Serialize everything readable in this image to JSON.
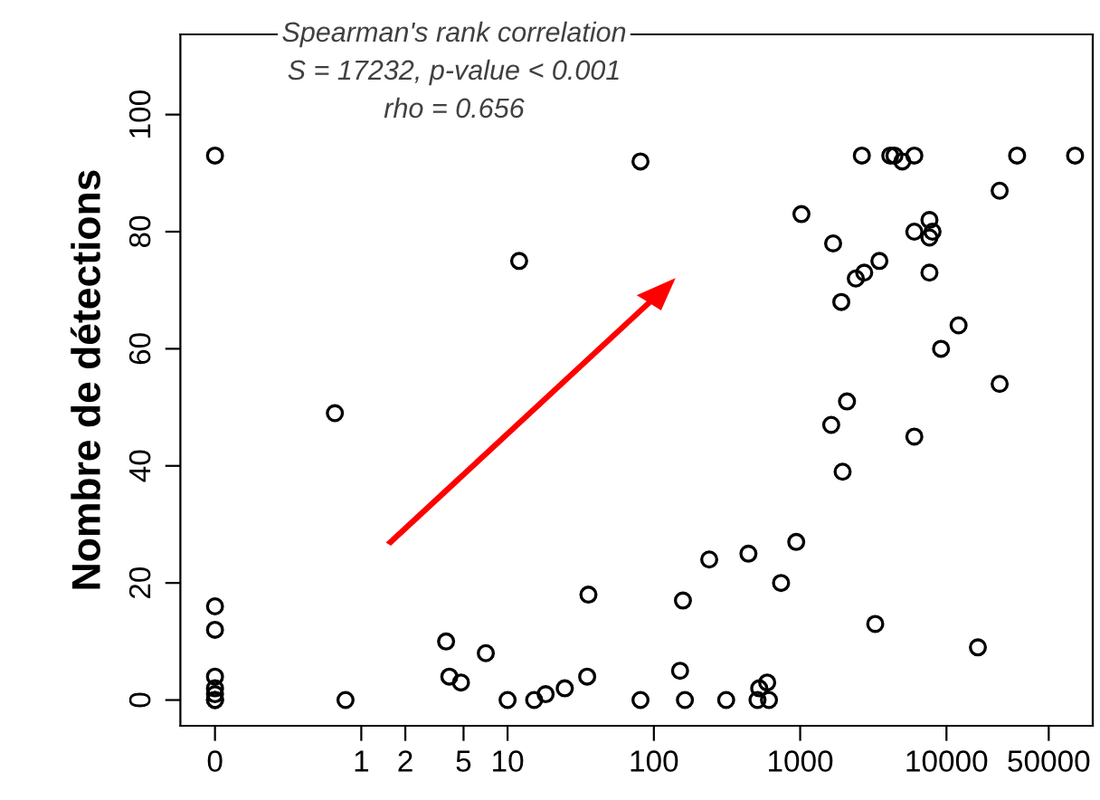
{
  "chart_data": {
    "type": "scatter",
    "ylabel": "Nombre de détections",
    "annotations": [
      "Spearman's rank correlation",
      "S = 17232, p-value < 0.001",
      "rho = 0.656"
    ],
    "x": [
      0.1,
      0.1,
      0.1,
      0.1,
      0.1,
      0.1,
      0.1,
      0.1,
      0.66,
      0.78,
      3.8,
      4.0,
      4.8,
      7.1,
      10,
      12,
      15.2,
      18.2,
      24.6,
      35,
      35.7,
      81,
      81,
      151,
      158,
      163,
      239,
      312,
      443,
      511,
      525,
      595,
      612,
      740,
      940,
      1020,
      1630,
      1680,
      1910,
      1950,
      2090,
      2400,
      2640,
      2740,
      3260,
      3480,
      4130,
      4410,
      4990,
      6030,
      6030,
      6030,
      7650,
      7650,
      7650,
      8030,
      9180,
      12100,
      16400,
      23100,
      23100,
      30400,
      75700
    ],
    "values": [
      93,
      16,
      12,
      4,
      2,
      1,
      0,
      0,
      49,
      0,
      10,
      4,
      3,
      8,
      0,
      75,
      0,
      1,
      2,
      4,
      18,
      92,
      0,
      5,
      17,
      0,
      24,
      0,
      25,
      0,
      2,
      3,
      0,
      20,
      27,
      83,
      47,
      78,
      68,
      39,
      51,
      72,
      93,
      73,
      13,
      75,
      93,
      93,
      92,
      93,
      80,
      45,
      82,
      79,
      73,
      80,
      60,
      64,
      9,
      87,
      54,
      93,
      93
    ],
    "color": "#000000",
    "marker": "circle",
    "xlim": [
      0.058,
      100000
    ],
    "xticks": [
      {
        "value": 0.1,
        "label": "0"
      },
      1,
      2,
      5,
      10,
      100,
      1000,
      10000,
      50000
    ],
    "ylim": [
      -4.4,
      113.7
    ],
    "yticks": [
      0,
      20,
      40,
      60,
      80,
      100
    ],
    "log": "x",
    "grid": false,
    "legend": false
  }
}
